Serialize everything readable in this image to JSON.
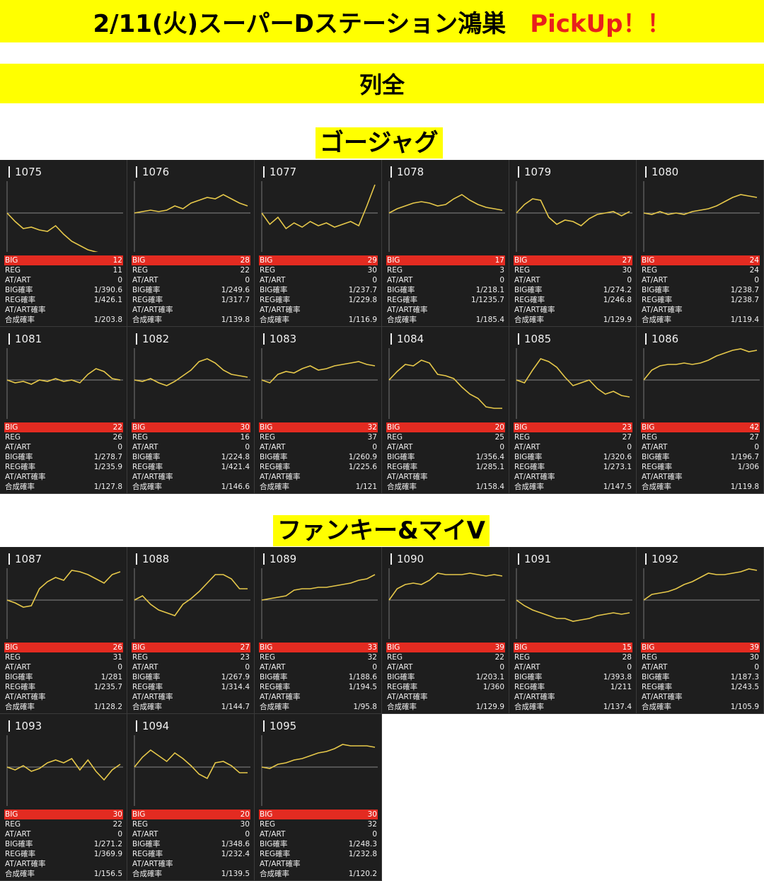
{
  "header": {
    "title": "2/11(火)スーパーDステーション鴻巣",
    "pickup": "PickUp！！",
    "row_label": "列全"
  },
  "colors": {
    "banner": "#ffff00",
    "pickup": "#e8201c",
    "card_bg": "#1e1e1e",
    "big_bar": "#e32b21",
    "graph_line": "#e6c84a"
  },
  "stat_labels": {
    "big": "BIG",
    "reg": "REG",
    "at": "AT/ART",
    "big_rate": "BIG確率",
    "reg_rate": "REG確率",
    "at_rate": "AT/ART確率",
    "total_rate": "合成確率"
  },
  "sections": [
    {
      "title": "ゴージャグ",
      "machines": [
        {
          "no": "1075",
          "big": "12",
          "reg": "11",
          "at": "0",
          "big_rate": "1/390.6",
          "reg_rate": "1/426.1",
          "at_rate": "",
          "total_rate": "1/203.8",
          "graph": [
            0,
            -12,
            -22,
            -20,
            -24,
            -26,
            -18,
            -30,
            -40,
            -46,
            -52,
            -55,
            -58,
            -58,
            -57
          ]
        },
        {
          "no": "1076",
          "big": "28",
          "reg": "22",
          "at": "0",
          "big_rate": "1/249.6",
          "reg_rate": "1/317.7",
          "at_rate": "",
          "total_rate": "1/139.8",
          "graph": [
            0,
            2,
            4,
            2,
            4,
            10,
            6,
            14,
            18,
            22,
            20,
            26,
            20,
            14,
            10
          ]
        },
        {
          "no": "1077",
          "big": "29",
          "reg": "30",
          "at": "0",
          "big_rate": "1/237.7",
          "reg_rate": "1/229.8",
          "at_rate": "",
          "total_rate": "1/116.9",
          "graph": [
            0,
            -16,
            -6,
            -22,
            -14,
            -20,
            -12,
            -18,
            -14,
            -20,
            -16,
            -12,
            -18,
            10,
            40
          ]
        },
        {
          "no": "1078",
          "big": "17",
          "reg": "3",
          "at": "0",
          "big_rate": "1/218.1",
          "reg_rate": "1/1235.7",
          "at_rate": "",
          "total_rate": "1/185.4",
          "graph": [
            0,
            6,
            10,
            14,
            16,
            14,
            10,
            12,
            20,
            26,
            18,
            12,
            8,
            6,
            4
          ]
        },
        {
          "no": "1079",
          "big": "27",
          "reg": "30",
          "at": "0",
          "big_rate": "1/274.2",
          "reg_rate": "1/246.8",
          "at_rate": "",
          "total_rate": "1/129.9",
          "graph": [
            0,
            12,
            20,
            18,
            -6,
            -16,
            -10,
            -12,
            -18,
            -8,
            -2,
            0,
            2,
            -4,
            2
          ]
        },
        {
          "no": "1080",
          "big": "24",
          "reg": "24",
          "at": "0",
          "big_rate": "1/238.7",
          "reg_rate": "1/238.7",
          "at_rate": "",
          "total_rate": "1/119.4",
          "graph": [
            0,
            -2,
            2,
            -2,
            0,
            -2,
            2,
            4,
            6,
            10,
            16,
            22,
            26,
            24,
            22
          ]
        }
      ]
    },
    {
      "title": "",
      "machines": [
        {
          "no": "1081",
          "big": "22",
          "reg": "26",
          "at": "0",
          "big_rate": "1/278.7",
          "reg_rate": "1/235.9",
          "at_rate": "",
          "total_rate": "1/127.8",
          "graph": [
            0,
            -4,
            -2,
            -6,
            0,
            -2,
            2,
            -2,
            0,
            -4,
            8,
            16,
            12,
            2,
            0
          ]
        },
        {
          "no": "1082",
          "big": "30",
          "reg": "16",
          "at": "0",
          "big_rate": "1/224.8",
          "reg_rate": "1/421.4",
          "at_rate": "",
          "total_rate": "1/146.6",
          "graph": [
            0,
            -2,
            2,
            -4,
            -8,
            -2,
            6,
            14,
            26,
            30,
            24,
            14,
            8,
            6,
            4
          ]
        },
        {
          "no": "1083",
          "big": "32",
          "reg": "37",
          "at": "0",
          "big_rate": "1/260.9",
          "reg_rate": "1/225.6",
          "at_rate": "",
          "total_rate": "1/121",
          "graph": [
            0,
            -4,
            8,
            12,
            10,
            16,
            20,
            14,
            16,
            20,
            22,
            24,
            26,
            22,
            20
          ]
        },
        {
          "no": "1084",
          "big": "20",
          "reg": "25",
          "at": "0",
          "big_rate": "1/356.4",
          "reg_rate": "1/285.1",
          "at_rate": "",
          "total_rate": "1/158.4",
          "graph": [
            0,
            12,
            22,
            20,
            28,
            24,
            8,
            6,
            2,
            -10,
            -20,
            -26,
            -38,
            -40,
            -40
          ]
        },
        {
          "no": "1085",
          "big": "23",
          "reg": "27",
          "at": "0",
          "big_rate": "1/320.6",
          "reg_rate": "1/273.1",
          "at_rate": "",
          "total_rate": "1/147.5",
          "graph": [
            0,
            -4,
            14,
            30,
            26,
            18,
            4,
            -8,
            -4,
            0,
            -12,
            -20,
            -16,
            -22,
            -24
          ]
        },
        {
          "no": "1086",
          "big": "42",
          "reg": "27",
          "at": "0",
          "big_rate": "1/196.7",
          "reg_rate": "1/306",
          "at_rate": "",
          "total_rate": "1/119.8",
          "graph": [
            0,
            14,
            20,
            22,
            22,
            24,
            22,
            24,
            28,
            34,
            38,
            42,
            44,
            40,
            42
          ]
        }
      ]
    },
    {
      "title": "ファンキー&マイV",
      "machines": [
        {
          "no": "1087",
          "big": "26",
          "reg": "31",
          "at": "0",
          "big_rate": "1/281",
          "reg_rate": "1/235.7",
          "at_rate": "",
          "total_rate": "1/128.2",
          "graph": [
            0,
            -4,
            -10,
            -8,
            16,
            26,
            32,
            28,
            42,
            40,
            36,
            30,
            24,
            36,
            40
          ]
        },
        {
          "no": "1088",
          "big": "27",
          "reg": "23",
          "at": "0",
          "big_rate": "1/267.9",
          "reg_rate": "1/314.4",
          "at_rate": "",
          "total_rate": "1/144.7",
          "graph": [
            0,
            6,
            -6,
            -14,
            -18,
            -22,
            -6,
            2,
            12,
            24,
            36,
            36,
            30,
            16,
            16
          ]
        },
        {
          "no": "1089",
          "big": "33",
          "reg": "32",
          "at": "0",
          "big_rate": "1/188.6",
          "reg_rate": "1/194.5",
          "at_rate": "",
          "total_rate": "1/95.8",
          "graph": [
            0,
            2,
            4,
            6,
            14,
            16,
            16,
            18,
            18,
            20,
            22,
            24,
            28,
            30,
            36
          ]
        },
        {
          "no": "1090",
          "big": "39",
          "reg": "22",
          "at": "0",
          "big_rate": "1/203.1",
          "reg_rate": "1/360",
          "at_rate": "",
          "total_rate": "1/129.9",
          "graph": [
            0,
            16,
            22,
            24,
            22,
            28,
            38,
            36,
            36,
            36,
            38,
            36,
            34,
            36,
            34
          ]
        },
        {
          "no": "1091",
          "big": "15",
          "reg": "28",
          "at": "0",
          "big_rate": "1/393.8",
          "reg_rate": "1/211",
          "at_rate": "",
          "total_rate": "1/137.4",
          "graph": [
            0,
            -8,
            -14,
            -18,
            -22,
            -26,
            -26,
            -30,
            -28,
            -26,
            -22,
            -20,
            -18,
            -20,
            -18
          ]
        },
        {
          "no": "1092",
          "big": "39",
          "reg": "30",
          "at": "0",
          "big_rate": "1/187.3",
          "reg_rate": "1/243.5",
          "at_rate": "",
          "total_rate": "1/105.9",
          "graph": [
            0,
            8,
            10,
            12,
            16,
            22,
            26,
            32,
            38,
            36,
            36,
            38,
            40,
            44,
            42
          ]
        }
      ]
    },
    {
      "title": "",
      "machines": [
        {
          "no": "1093",
          "big": "30",
          "reg": "22",
          "at": "0",
          "big_rate": "1/271.2",
          "reg_rate": "1/369.9",
          "at_rate": "",
          "total_rate": "1/156.5",
          "graph": [
            0,
            -4,
            2,
            -6,
            -2,
            6,
            10,
            6,
            12,
            -4,
            10,
            -6,
            -18,
            -4,
            4
          ]
        },
        {
          "no": "1094",
          "big": "20",
          "reg": "30",
          "at": "0",
          "big_rate": "1/348.6",
          "reg_rate": "1/232.4",
          "at_rate": "",
          "total_rate": "1/139.5",
          "graph": [
            0,
            14,
            24,
            16,
            8,
            20,
            12,
            2,
            -10,
            -16,
            6,
            8,
            2,
            -8,
            -8
          ]
        },
        {
          "no": "1095",
          "big": "30",
          "reg": "32",
          "at": "0",
          "big_rate": "1/248.3",
          "reg_rate": "1/232.8",
          "at_rate": "",
          "total_rate": "1/120.2",
          "graph": [
            0,
            -2,
            4,
            6,
            10,
            12,
            16,
            20,
            22,
            26,
            32,
            30,
            30,
            30,
            28
          ]
        }
      ]
    }
  ]
}
